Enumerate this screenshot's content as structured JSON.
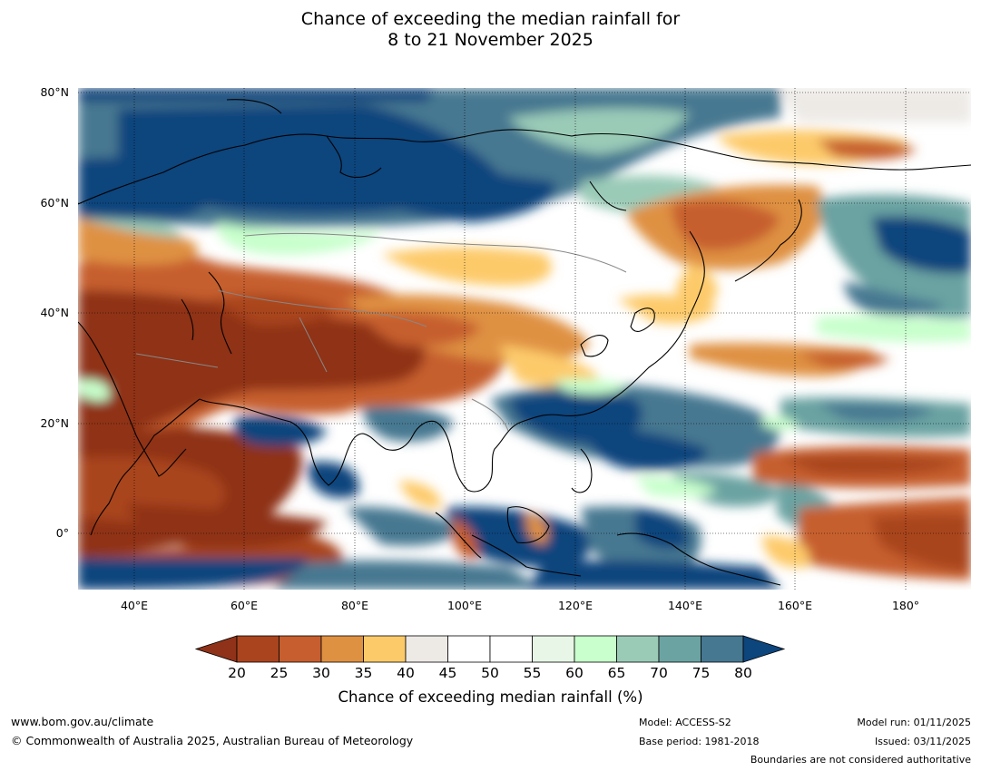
{
  "title": {
    "line1": "Chance of exceeding the median rainfall for",
    "line2": "8 to 21 November 2025"
  },
  "map": {
    "lat_labels": [
      "80°N",
      "60°N",
      "40°N",
      "20°N",
      "0°"
    ],
    "lon_labels": [
      "40°E",
      "60°E",
      "80°E",
      "100°E",
      "120°E",
      "140°E",
      "160°E",
      "180°"
    ]
  },
  "colorbar": {
    "title": "Chance of exceeding median rainfall (%)",
    "ticks": [
      "20",
      "25",
      "30",
      "35",
      "40",
      "45",
      "50",
      "55",
      "60",
      "65",
      "70",
      "75",
      "80"
    ],
    "under_color": "#8f3219",
    "over_color": "#0d457d",
    "colors": [
      "#a9441f",
      "#c65e2f",
      "#df9142",
      "#fdca6a",
      "#edeae6",
      "#ffffff",
      "#ffffff",
      "#e7f6e6",
      "#c8ffcc",
      "#9acbb7",
      "#6ba3a2",
      "#467891"
    ]
  },
  "footer": {
    "website": "www.bom.gov.au/climate",
    "copyright": "© Commonwealth of Australia 2025, Australian Bureau of Meteorology",
    "model": "Model: ACCESS-S2",
    "base_period": "Base period: 1981-2018",
    "model_run": "Model run: 01/11/2025",
    "issued": "Issued: 03/11/2025",
    "disclaimer": "Boundaries are not considered authoritative"
  }
}
